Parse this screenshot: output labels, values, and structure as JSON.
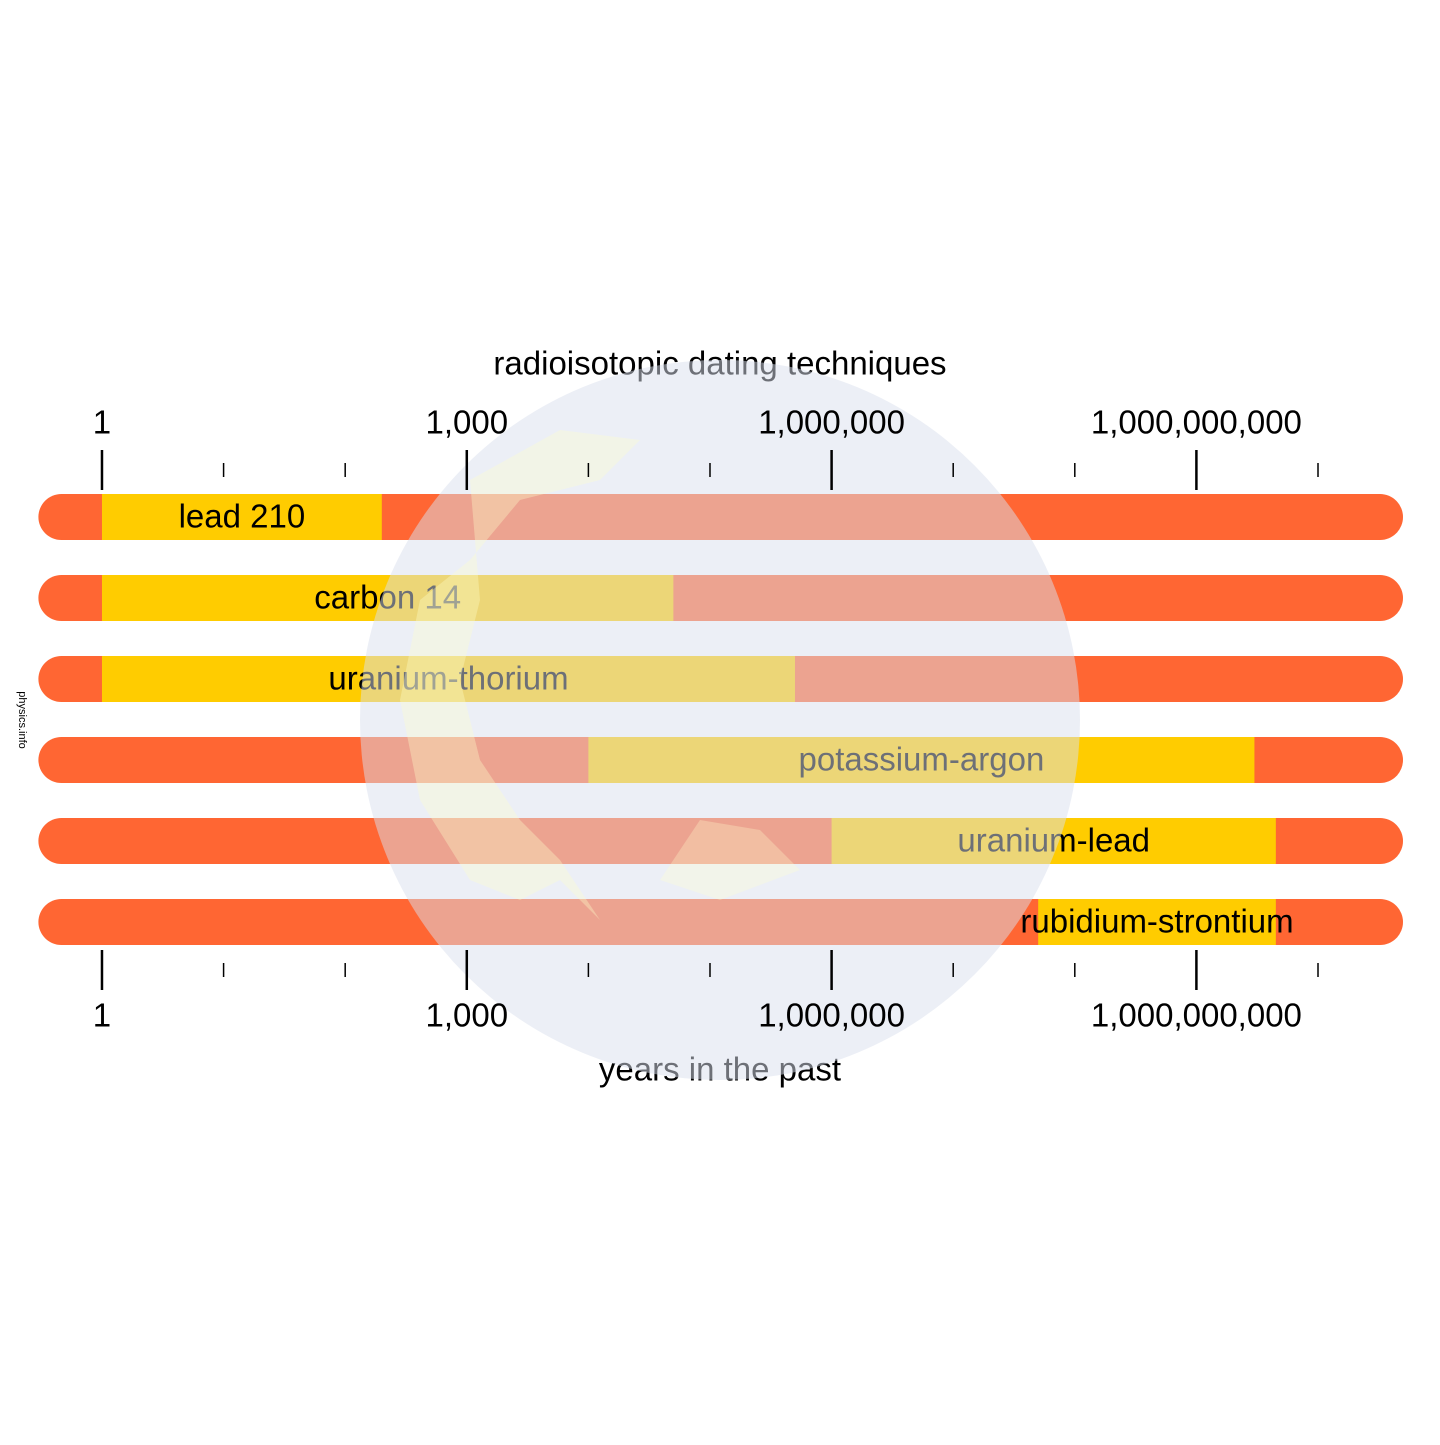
{
  "chart_data": {
    "type": "range-bar",
    "title": "radioisotopic dating techniques",
    "x_label": "years in the past",
    "credit": "physics.info",
    "log_scale": true,
    "xlim": [
      0.3,
      50000000000
    ],
    "xticks": [
      1,
      {
        "value": 1000,
        "label": "1,000"
      },
      {
        "value": 1000000,
        "label": "1,000,000"
      },
      {
        "value": 1000000000,
        "label": "1,000,000,000"
      }
    ],
    "xminorticks": [
      10,
      100,
      10000,
      100000,
      10000000,
      100000000,
      10000000000
    ],
    "background_color": "#ff6633",
    "color": "#ffcc00",
    "bars": [
      {
        "name": "lead 210",
        "start": 1,
        "end": 200
      },
      {
        "name": "carbon 14",
        "start": 1,
        "end": 50000
      },
      {
        "name": "uranium-thorium",
        "start": 1,
        "end": 500000
      },
      {
        "name": "potassium-argon",
        "start": 10000,
        "end": 3000000000
      },
      {
        "name": "uranium-lead",
        "start": 1000000,
        "end": 4500000000
      },
      {
        "name": "rubidium-strontium",
        "start": 50000000,
        "end": 4500000000
      }
    ]
  }
}
